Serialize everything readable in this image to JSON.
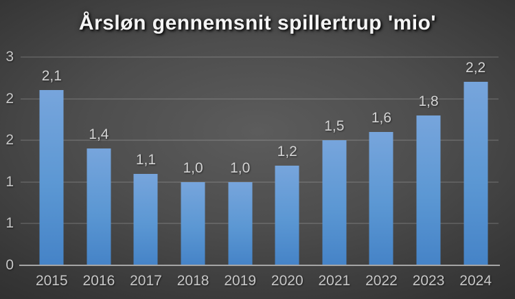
{
  "title": "Årsløn gennemsnit spillertrup 'mio'",
  "colors": {
    "background_center": "#5c5c5c",
    "background_edge": "#1e1e1e",
    "bar_top": "#77a5dc",
    "bar_bottom": "#4583c7",
    "gridline": "rgba(255,255,255,0.13)",
    "axis_line": "#a6a6a6",
    "tick_text": "#c7c7c7",
    "data_label_text": "#d4d4d4",
    "title_text": "#f4f4f4"
  },
  "chart_data": {
    "type": "bar",
    "title": "Årsløn gennemsnit spillertrup 'mio'",
    "categories": [
      "2015",
      "2016",
      "2017",
      "2018",
      "2019",
      "2020",
      "2021",
      "2022",
      "2023",
      "2024"
    ],
    "values": [
      2.1,
      1.4,
      1.1,
      1.0,
      1.0,
      1.2,
      1.5,
      1.6,
      1.8,
      2.2
    ],
    "data_labels": [
      "2,1",
      "1,4",
      "1,1",
      "1,0",
      "1,0",
      "1,2",
      "1,5",
      "1,6",
      "1,8",
      "2,2"
    ],
    "xlabel": "",
    "ylabel": "",
    "ylim": [
      0,
      2.5
    ],
    "ytick_step": 0.5,
    "ytick_values": [
      0,
      0.5,
      1.0,
      1.5,
      2.0,
      2.5
    ],
    "ytick_labels_displayed": [
      "0",
      "1",
      "1",
      "2",
      "2",
      "3"
    ],
    "grid": true,
    "legend": false,
    "data_label_position": "above-bar",
    "theme": "dark"
  }
}
